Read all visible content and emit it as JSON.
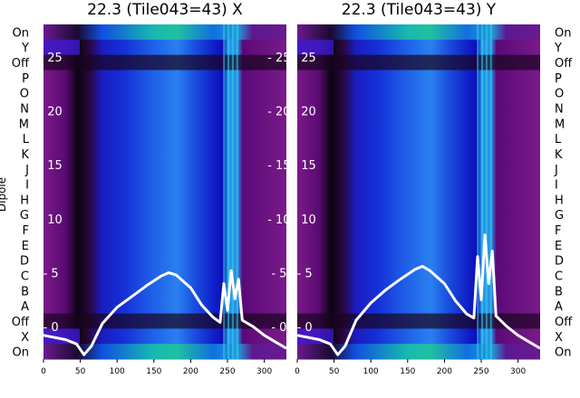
{
  "chart_data": [
    {
      "type": "heatmap",
      "title": "22.3 (Tile043=43) X",
      "ylabel": "Dipole",
      "xlim": [
        0,
        330
      ],
      "xticks": [
        0,
        50,
        100,
        150,
        200,
        250,
        300
      ],
      "ylim": [
        -3,
        28
      ],
      "yticks": [
        0,
        5,
        10,
        15,
        20,
        25
      ],
      "rows": [
        "On",
        "X",
        "Off",
        "A",
        "B",
        "C",
        "D",
        "E",
        "F",
        "G",
        "H",
        "I",
        "J",
        "K",
        "L",
        "M",
        "N",
        "O",
        "P",
        "Off",
        "Y",
        "On"
      ],
      "overlay_curves": [
        {
          "x": [
            0,
            30,
            45,
            55,
            65,
            80,
            100,
            120,
            140,
            160,
            170,
            180,
            200,
            215,
            230,
            240,
            245,
            250,
            255,
            260,
            265,
            270,
            285,
            300,
            315,
            330
          ],
          "y": [
            -0.8,
            -1.2,
            -1.6,
            -2.6,
            -1.8,
            0.3,
            1.8,
            2.8,
            3.8,
            4.7,
            5.0,
            4.8,
            3.6,
            2.0,
            0.9,
            0.4,
            4.0,
            1.5,
            5.2,
            2.6,
            4.4,
            0.6,
            0.0,
            -0.8,
            -1.4,
            -2.0
          ]
        }
      ]
    },
    {
      "type": "heatmap",
      "title": "22.3 (Tile043=43) Y",
      "xlim": [
        0,
        330
      ],
      "xticks": [
        0,
        50,
        100,
        150,
        200,
        250,
        300
      ],
      "ylim": [
        -3,
        28
      ],
      "yticks": [
        0,
        5,
        10,
        15,
        20,
        25
      ],
      "rows": [
        "On",
        "X",
        "Off",
        "A",
        "B",
        "C",
        "D",
        "E",
        "F",
        "G",
        "H",
        "I",
        "J",
        "K",
        "L",
        "M",
        "N",
        "O",
        "P",
        "Off",
        "Y",
        "On"
      ],
      "overlay_curves": [
        {
          "x": [
            0,
            30,
            45,
            55,
            65,
            80,
            100,
            120,
            140,
            160,
            170,
            180,
            200,
            215,
            230,
            240,
            245,
            250,
            255,
            260,
            265,
            270,
            285,
            300,
            315,
            330
          ],
          "y": [
            -0.8,
            -1.2,
            -1.6,
            -2.6,
            -1.8,
            0.6,
            2.2,
            3.4,
            4.4,
            5.3,
            5.6,
            5.2,
            4.0,
            2.4,
            1.2,
            0.8,
            6.5,
            2.5,
            8.5,
            4.0,
            7.0,
            1.0,
            0.0,
            -0.8,
            -1.4,
            -2.0
          ]
        }
      ]
    }
  ]
}
